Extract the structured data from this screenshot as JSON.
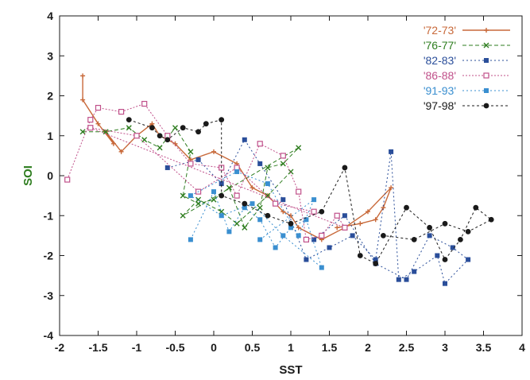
{
  "chart_data": {
    "type": "scatter",
    "xlabel": "SST",
    "ylabel": "SOI",
    "xlim": [
      -2,
      4
    ],
    "ylim": [
      -4,
      4
    ],
    "xticks": [
      -2,
      -1.5,
      -1,
      -0.5,
      0,
      0.5,
      1,
      1.5,
      2,
      2.5,
      3,
      3.5,
      4
    ],
    "yticks": [
      -4,
      -3,
      -2,
      -1,
      0,
      1,
      2,
      3,
      4
    ],
    "xtick_labels": [
      "-2",
      "-1.5",
      "-1",
      "-0.5",
      "0",
      "0.5",
      "1",
      "1.5",
      "2",
      "2.5",
      "3",
      "3.5",
      "4"
    ],
    "ytick_labels": [
      "-4",
      "-3",
      "-2",
      "-1",
      "0",
      "1",
      "2",
      "3",
      "4"
    ],
    "legend_position": "top-right",
    "grid": false,
    "series": [
      {
        "name": "'72-73'",
        "color": "#c8693a",
        "marker": "plus",
        "dash": "solid",
        "x": [
          -1.7,
          -1.7,
          -1.5,
          -1.3,
          -1.4,
          -1.2,
          -1.0,
          -0.8,
          -0.7,
          -0.5,
          -0.3,
          0.0,
          0.3,
          0.5,
          0.7,
          0.9,
          1.0,
          1.1,
          1.4,
          1.7,
          2.0,
          2.3,
          2.2,
          2.1,
          1.9,
          1.6
        ],
        "y": [
          2.5,
          1.9,
          1.3,
          0.8,
          1.1,
          0.6,
          1.0,
          1.3,
          1.0,
          0.8,
          0.4,
          0.6,
          0.3,
          -0.3,
          -0.5,
          -0.9,
          -1.0,
          -1.3,
          -1.6,
          -1.3,
          -0.9,
          -0.3,
          -0.8,
          -1.1,
          -1.2,
          -1.3
        ]
      },
      {
        "name": "'76-77'",
        "color": "#2e7d1f",
        "marker": "x",
        "dash": "5,3",
        "x": [
          -1.7,
          -1.4,
          -1.1,
          -0.9,
          -0.7,
          -0.5,
          -0.3,
          -0.4,
          -0.2,
          0.0,
          0.2,
          0.4,
          0.6,
          0.7,
          0.9,
          1.1,
          -0.4,
          -0.2,
          0.1,
          0.3,
          0.7,
          1.0
        ],
        "y": [
          1.1,
          1.1,
          1.2,
          0.9,
          0.7,
          1.2,
          0.6,
          -0.5,
          -0.7,
          -0.6,
          -0.3,
          -1.3,
          -0.8,
          0.2,
          0.3,
          0.7,
          -1.0,
          -0.6,
          -0.9,
          -1.2,
          -0.5,
          0.1
        ]
      },
      {
        "name": "'82-83'",
        "color": "#2a4e9a",
        "marker": "square",
        "dash": "2,3",
        "x": [
          -0.6,
          -0.2,
          0.1,
          0.4,
          0.6,
          0.9,
          1.2,
          1.5,
          1.8,
          2.1,
          2.3,
          2.4,
          2.6,
          2.9,
          3.0,
          3.3,
          3.1,
          2.8,
          2.5,
          2.1,
          1.7,
          1.3
        ],
        "y": [
          0.2,
          0.4,
          -0.2,
          0.9,
          0.3,
          -0.6,
          -2.1,
          -1.8,
          -1.5,
          -2.1,
          0.6,
          -2.6,
          -2.4,
          -2.0,
          -2.7,
          -2.1,
          -1.8,
          -1.5,
          -2.6,
          -2.2,
          -1.0,
          -1.6
        ]
      },
      {
        "name": "'86-88'",
        "color": "#c0508a",
        "marker": "opensquare",
        "dash": "2,2",
        "x": [
          -1.9,
          -1.6,
          -1.5,
          -1.2,
          -0.9,
          -0.6,
          -0.3,
          0.1,
          0.3,
          0.6,
          0.9,
          1.1,
          1.2,
          1.4,
          1.6,
          1.7,
          -1.6,
          -1.0,
          -0.2,
          0.3,
          0.8,
          1.3
        ],
        "y": [
          -0.1,
          1.4,
          1.7,
          1.6,
          1.8,
          1.0,
          0.3,
          0.2,
          -0.5,
          0.8,
          0.5,
          -0.4,
          -1.6,
          -1.5,
          -1.0,
          -1.3,
          1.2,
          1.0,
          -0.4,
          0.2,
          -0.7,
          -0.9
        ]
      },
      {
        "name": "'91-93'",
        "color": "#3a8fd0",
        "marker": "square",
        "dash": "2,3",
        "x": [
          -0.3,
          0.0,
          0.2,
          0.4,
          0.6,
          0.8,
          1.0,
          1.2,
          1.4,
          0.9,
          0.5,
          0.1,
          -0.3,
          0.3,
          0.7,
          1.1,
          1.3,
          0.6
        ],
        "y": [
          -1.6,
          -0.4,
          -1.4,
          -0.8,
          -1.1,
          -1.8,
          -1.3,
          -1.1,
          -2.3,
          -1.5,
          -0.7,
          -1.0,
          -0.5,
          0.1,
          -0.2,
          -1.5,
          -0.6,
          -1.6
        ]
      },
      {
        "name": "'97-98'",
        "color": "#1a1a1a",
        "marker": "circle",
        "dash": "3,3",
        "x": [
          -1.1,
          -0.8,
          -0.7,
          -0.6,
          -0.4,
          -0.2,
          -0.1,
          0.1,
          0.1,
          0.4,
          0.7,
          1.0,
          1.4,
          1.7,
          1.9,
          2.1,
          2.5,
          2.8,
          3.0,
          3.2,
          3.4,
          3.6,
          3.3,
          3.0,
          2.6,
          2.2
        ],
        "y": [
          1.4,
          1.2,
          1.0,
          0.9,
          1.2,
          1.1,
          1.3,
          1.4,
          -0.5,
          -0.7,
          -1.0,
          -1.2,
          -0.9,
          0.2,
          -2.0,
          -2.2,
          -0.8,
          -1.3,
          -2.1,
          -1.6,
          -0.8,
          -1.1,
          -1.4,
          -1.2,
          -1.6,
          -1.5
        ]
      }
    ]
  }
}
